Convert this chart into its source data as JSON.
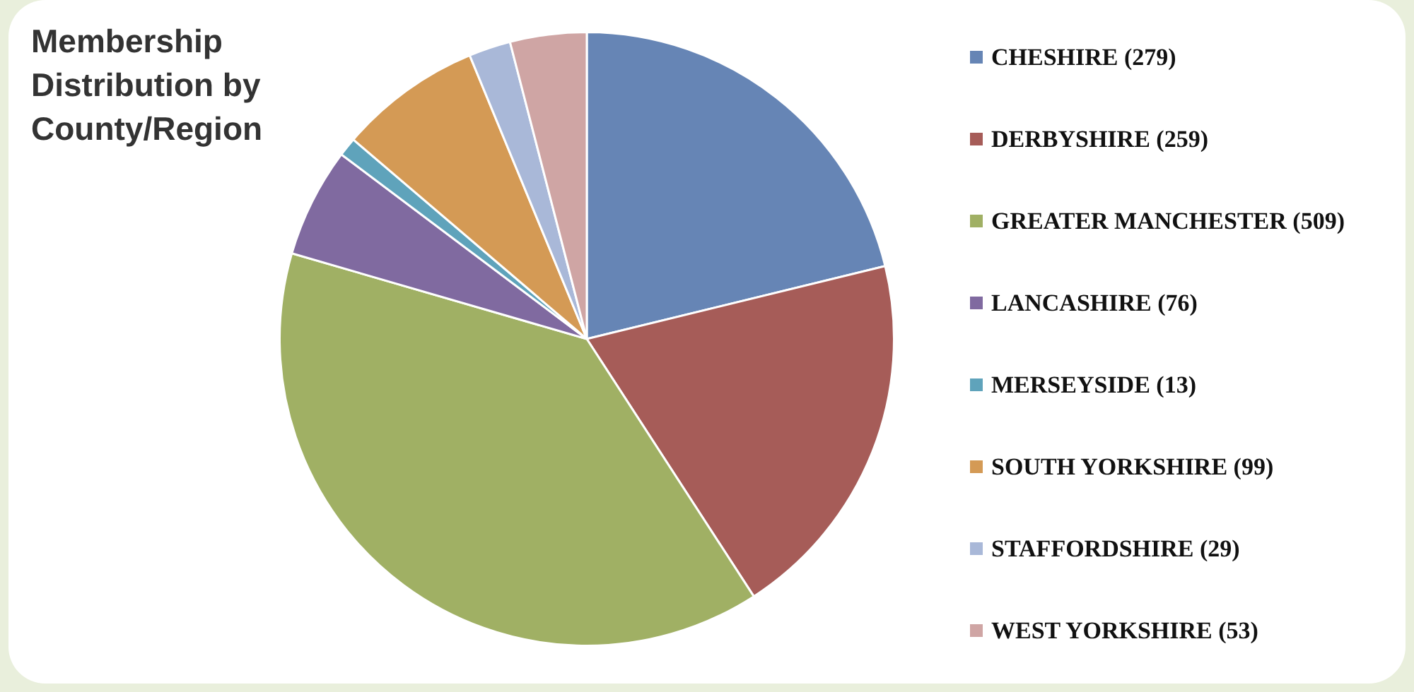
{
  "chart_data": {
    "type": "pie",
    "title": "Membership Distribution by County/Region",
    "categories": [
      "CHESHIRE (279)",
      "DERBYSHIRE (259)",
      "GREATER MANCHESTER (509)",
      "LANCASHIRE (76)",
      "MERSEYSIDE (13)",
      "SOUTH YORKSHIRE (99)",
      "STAFFORDSHIRE (29)",
      "WEST YORKSHIRE (53)"
    ],
    "values": [
      279,
      259,
      509,
      76,
      13,
      99,
      29,
      53
    ],
    "colors": [
      "#6685b5",
      "#a65c58",
      "#a0b064",
      "#806aa0",
      "#5fa3bb",
      "#d49a55",
      "#a9b8d8",
      "#cfa5a4"
    ],
    "legend": "right"
  }
}
